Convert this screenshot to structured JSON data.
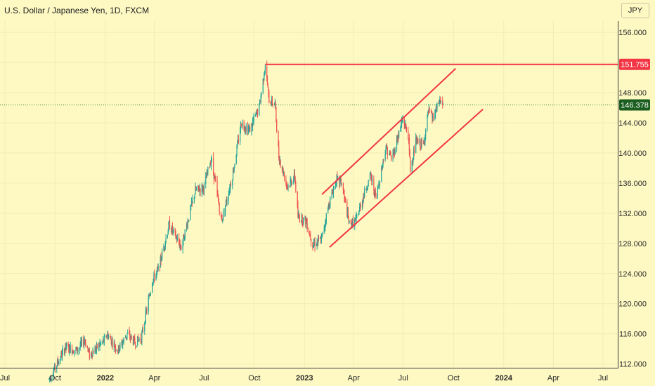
{
  "header": {
    "title": "U.S. Dollar / Japanese Yen, 1D, FXCM"
  },
  "currency_button": {
    "label": "JPY"
  },
  "colors": {
    "background": "#fef9c3",
    "grid": "#f1ebb4",
    "axis_text": "#2a2a2a",
    "up": "#26a69a",
    "down": "#ef5350",
    "trendline": "#f23645",
    "high_label": "#f23645",
    "last_label": "#1b5e20"
  },
  "chart_data": {
    "type": "candlestick",
    "title": "U.S. Dollar / Japanese Yen, 1D, FXCM",
    "y_axis": {
      "ticks": [
        112,
        116,
        120,
        124,
        128,
        132,
        136,
        140,
        144,
        148,
        152,
        156
      ],
      "tick_labels": [
        "112.000",
        "116.000",
        "120.000",
        "124.000",
        "128.000",
        "132.000",
        "136.000",
        "140.000",
        "144.000",
        "148.000",
        "",
        "156.000"
      ],
      "range": [
        111.5,
        157.5
      ]
    },
    "x_axis": {
      "ticks": [
        "2021-07-01",
        "2021-10-01",
        "2022-01-01",
        "2022-04-01",
        "2022-07-01",
        "2022-10-01",
        "2023-01-01",
        "2023-04-01",
        "2023-07-01",
        "2023-10-01",
        "2024-01-01",
        "2024-04-01",
        "2024-07-01"
      ],
      "tick_labels": [
        "Jul",
        "Oct",
        "2022",
        "Apr",
        "Jul",
        "Oct",
        "2023",
        "Apr",
        "Jul",
        "Oct",
        "2024",
        "Apr",
        "Jul"
      ],
      "bold": [
        false,
        false,
        true,
        false,
        false,
        false,
        true,
        false,
        false,
        false,
        true,
        false,
        false
      ],
      "range": [
        "2021-06-22",
        "2024-07-28"
      ]
    },
    "price_path": [
      [
        "2021-09-20",
        110.0
      ],
      [
        "2021-10-08",
        112.5
      ],
      [
        "2021-10-20",
        114.2
      ],
      [
        "2021-11-10",
        113.8
      ],
      [
        "2021-11-24",
        115.2
      ],
      [
        "2021-12-03",
        113.2
      ],
      [
        "2021-12-31",
        115.2
      ],
      [
        "2022-01-04",
        116.0
      ],
      [
        "2022-01-24",
        113.8
      ],
      [
        "2022-02-10",
        116.0
      ],
      [
        "2022-02-24",
        114.8
      ],
      [
        "2022-03-08",
        115.5
      ],
      [
        "2022-03-28",
        123.0
      ],
      [
        "2022-04-08",
        124.5
      ],
      [
        "2022-04-28",
        130.5
      ],
      [
        "2022-05-20",
        127.5
      ],
      [
        "2022-06-15",
        135.0
      ],
      [
        "2022-07-01",
        135.5
      ],
      [
        "2022-07-14",
        139.3
      ],
      [
        "2022-08-02",
        131.0
      ],
      [
        "2022-08-22",
        137.0
      ],
      [
        "2022-09-07",
        144.0
      ],
      [
        "2022-09-22",
        143.0
      ],
      [
        "2022-10-10",
        146.0
      ],
      [
        "2022-10-21",
        151.755
      ],
      [
        "2022-10-28",
        147.0
      ],
      [
        "2022-11-08",
        146.5
      ],
      [
        "2022-11-15",
        139.5
      ],
      [
        "2022-12-01",
        135.5
      ],
      [
        "2022-12-14",
        137.0
      ],
      [
        "2022-12-20",
        131.5
      ],
      [
        "2023-01-04",
        131.0
      ],
      [
        "2023-01-16",
        127.9
      ],
      [
        "2023-02-01",
        128.5
      ],
      [
        "2023-02-14",
        133.0
      ],
      [
        "2023-02-28",
        136.5
      ],
      [
        "2023-03-10",
        136.0
      ],
      [
        "2023-03-24",
        130.5
      ],
      [
        "2023-04-05",
        131.0
      ],
      [
        "2023-04-20",
        134.5
      ],
      [
        "2023-05-02",
        137.0
      ],
      [
        "2023-05-12",
        134.0
      ],
      [
        "2023-05-30",
        140.8
      ],
      [
        "2023-06-10",
        139.2
      ],
      [
        "2023-06-30",
        144.5
      ],
      [
        "2023-07-10",
        142.5
      ],
      [
        "2023-07-14",
        137.8
      ],
      [
        "2023-07-24",
        141.5
      ],
      [
        "2023-08-07",
        141.0
      ],
      [
        "2023-08-16",
        145.5
      ],
      [
        "2023-08-24",
        144.5
      ],
      [
        "2023-09-01",
        146.0
      ],
      [
        "2023-09-06",
        147.0
      ],
      [
        "2023-09-12",
        146.378
      ]
    ],
    "horizontal_line": {
      "value": 151.755,
      "from": "2022-10-21"
    },
    "channel_upper": {
      "from": [
        "2023-02-02",
        134.5
      ],
      "to": [
        "2023-10-05",
        151.2
      ]
    },
    "channel_lower": {
      "from": [
        "2023-02-16",
        127.5
      ],
      "to": [
        "2023-11-24",
        145.8
      ]
    },
    "last_price": 146.378,
    "price_labels": {
      "high": "151.755",
      "last": "146.378"
    }
  }
}
